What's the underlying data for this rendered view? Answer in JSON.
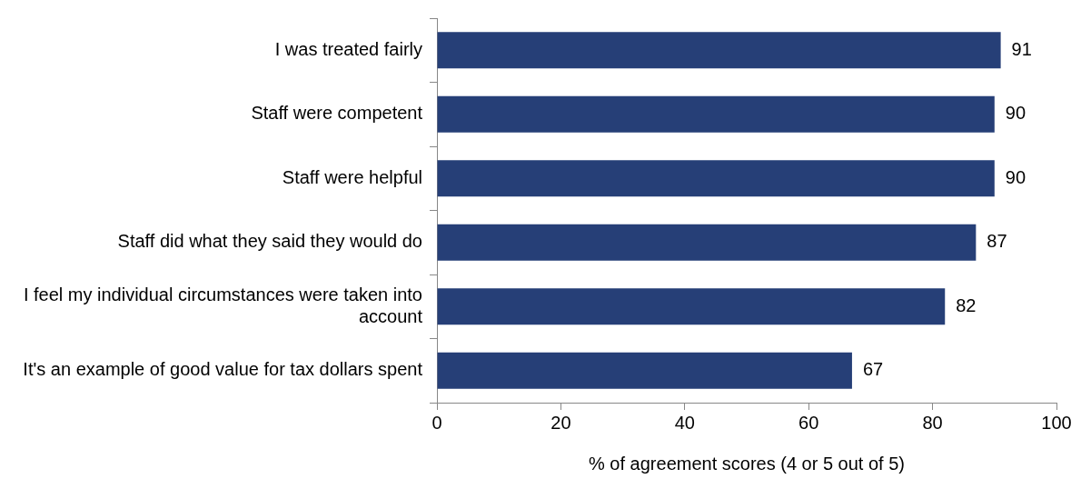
{
  "chart_data": {
    "type": "bar",
    "orientation": "horizontal",
    "xlabel": "% of agreement scores (4 or 5 out of 5)",
    "categories": [
      "I was treated fairly",
      "Staff were competent",
      "Staff were helpful",
      "Staff did what they said they would do",
      "I feel my individual circumstances were taken into account",
      "It's an example of good value for tax dollars spent"
    ],
    "values": [
      91,
      90,
      90,
      87,
      82,
      67
    ],
    "color": "#263f77",
    "data_labels": true,
    "xlim": [
      0,
      100
    ],
    "xticks": [
      0,
      20,
      40,
      60,
      80,
      100
    ]
  }
}
